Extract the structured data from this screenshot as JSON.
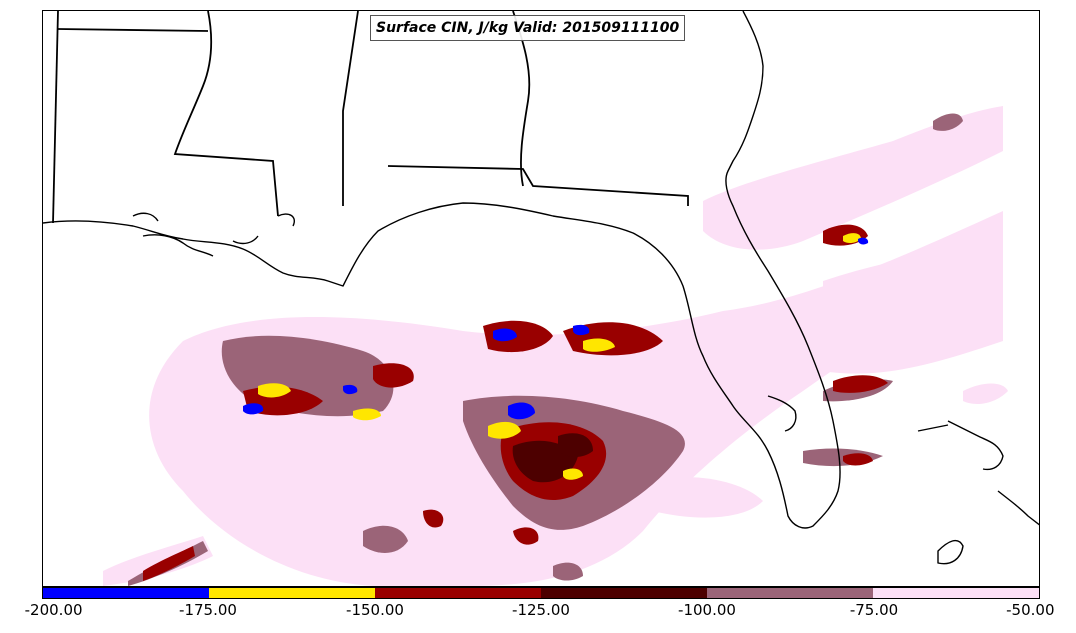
{
  "map": {
    "title": "Surface CIN, J/kg Valid: 201509111100",
    "colors": {
      "minus200_to_175": "#0000ff",
      "minus175_to_150": "#ffe600",
      "minus150_to_125": "#990000",
      "minus125_to_100": "#4d0000",
      "minus100_to_75": "#9b6478",
      "minus75_to_50": "#fce0f6"
    },
    "colorbar": {
      "ticks": [
        "-200.00",
        "-175.00",
        "-150.00",
        "-125.00",
        "-100.00",
        "-75.00",
        "-50.00"
      ],
      "segment_colors": [
        "#0000ff",
        "#ffe600",
        "#990000",
        "#4d0000",
        "#9b6478",
        "#fce0f6"
      ]
    }
  }
}
